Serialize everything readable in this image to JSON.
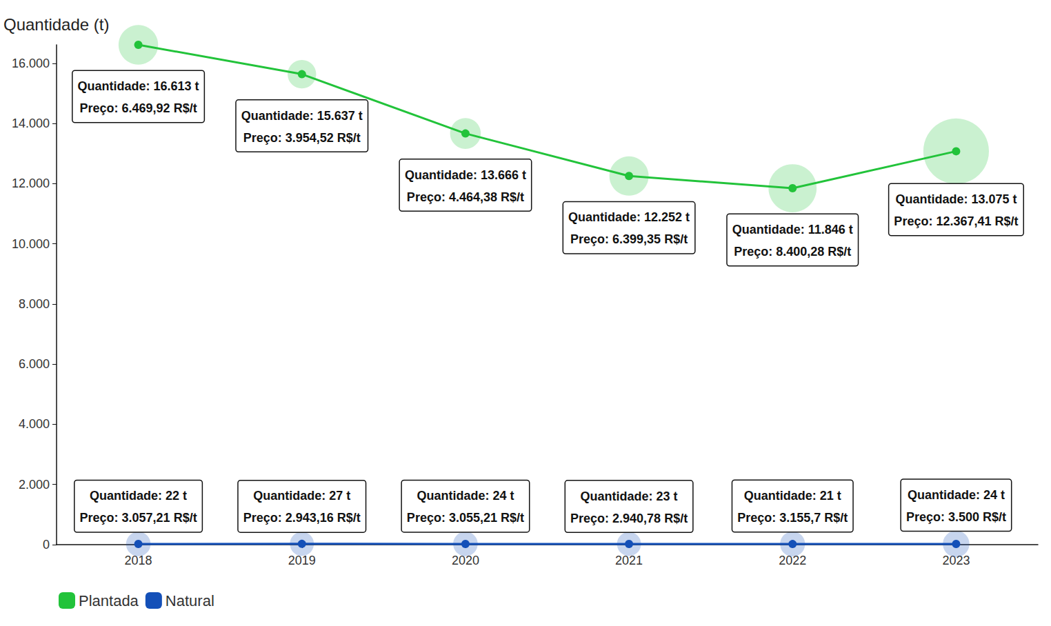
{
  "chart_data": {
    "type": "line",
    "y_label": "Quantidade (t)",
    "categories": [
      "2018",
      "2019",
      "2020",
      "2021",
      "2022",
      "2023"
    ],
    "ylim": [
      0,
      16613
    ],
    "yticks": [
      0,
      {
        "value": 2000,
        "label": "2.000"
      },
      {
        "value": 4000,
        "label": "4.000"
      },
      {
        "value": 6000,
        "label": "6.000"
      },
      {
        "value": 8000,
        "label": "8.000"
      },
      {
        "value": 10000,
        "label": "10.000"
      },
      {
        "value": 12000,
        "label": "12.000"
      },
      {
        "value": 14000,
        "label": "14.000"
      },
      {
        "value": 16000,
        "label": "16.000"
      }
    ],
    "grid": false,
    "legend": "bottom-left",
    "data_labels": true,
    "marker": "circle",
    "series": [
      {
        "name": "Plantada",
        "color": "#22c33a",
        "values": [
          16613,
          15637,
          13666,
          12252,
          11846,
          13075
        ],
        "value_labels": [
          "Quantidade: 16.613 t",
          "Quantidade: 15.637 t",
          "Quantidade: 13.666 t",
          "Quantidade: 12.252 t",
          "Quantidade: 11.846 t",
          "Quantidade: 13.075 t"
        ],
        "prices": [
          6469.92,
          3954.52,
          4464.38,
          6399.35,
          8400.28,
          12367.41
        ],
        "price_labels": [
          "Preço: 6.469,92 R$/t",
          "Preço: 3.954,52 R$/t",
          "Preço: 4.464,38 R$/t",
          "Preço: 6.399,35 R$/t",
          "Preço: 8.400,28 R$/t",
          "Preço: 12.367,41 R$/t"
        ]
      },
      {
        "name": "Natural",
        "color": "#1450b8",
        "values": [
          22,
          27,
          24,
          23,
          21,
          24
        ],
        "value_labels": [
          "Quantidade: 22 t",
          "Quantidade: 27 t",
          "Quantidade: 24 t",
          "Quantidade: 23 t",
          "Quantidade: 21 t",
          "Quantidade: 24 t"
        ],
        "prices": [
          3057.21,
          2943.16,
          3055.21,
          2940.78,
          3155.7,
          3500
        ],
        "price_labels": [
          "Preço: 3.057,21 R$/t",
          "Preço: 2.943,16 R$/t",
          "Preço: 3.055,21 R$/t",
          "Preço: 2.940,78 R$/t",
          "Preço: 3.155,7 R$/t",
          "Preço: 3.500 R$/t"
        ]
      }
    ]
  }
}
